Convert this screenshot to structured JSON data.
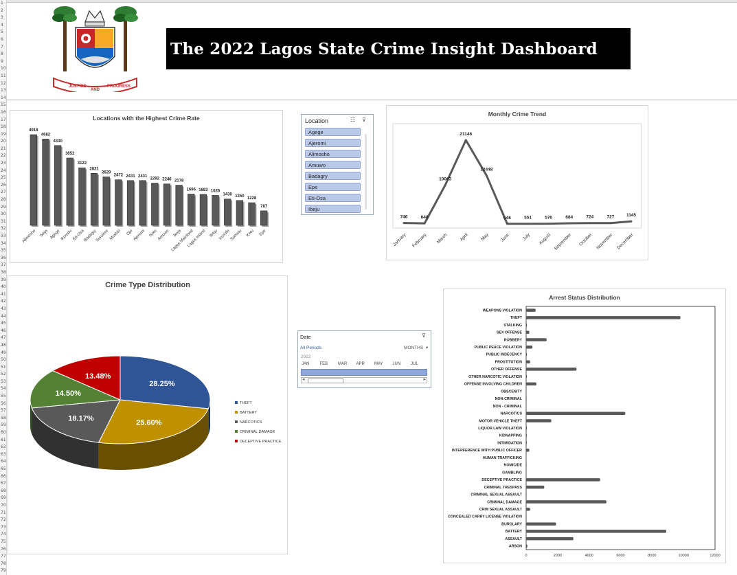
{
  "title": "The 2022 Lagos State Crime Insight Dashboard",
  "logo": {
    "motto_left": "JUSTICE",
    "motto_mid": "AND",
    "motto_right": "PROGRESS"
  },
  "row_numbers": [
    "1",
    "2",
    "3",
    "4",
    "5",
    "6",
    "7",
    "8",
    "9",
    "10",
    "11",
    "12",
    "13",
    "14",
    "15",
    "16",
    "17",
    "18",
    "19",
    "20",
    "21",
    "22",
    "23",
    "24",
    "25",
    "26",
    "27",
    "28",
    "29",
    "30",
    "31",
    "32",
    "33",
    "34",
    "35",
    "36",
    "37",
    "38",
    "39",
    "40",
    "41",
    "42",
    "43",
    "44",
    "45",
    "46",
    "47",
    "48",
    "49",
    "50",
    "51",
    "52",
    "53",
    "54",
    "55",
    "56",
    "57",
    "58",
    "59",
    "60",
    "61",
    "62",
    "63",
    "64",
    "65",
    "66",
    "67",
    "68",
    "69",
    "70",
    "71",
    "72",
    "73",
    "74",
    "75",
    "76",
    "77",
    "78",
    "79"
  ],
  "location_slicer": {
    "title": "Location",
    "items": [
      "Agege",
      "Ajeromi",
      "Alimosho",
      "Amuwo",
      "Badagry",
      "Epe",
      "Eti-Osa",
      "Ibeju"
    ]
  },
  "timeline_slicer": {
    "title": "Date",
    "all_periods": "All Periods",
    "unit": "MONTHS",
    "year": "2022",
    "months": [
      "JAN",
      "FEB",
      "MAR",
      "APR",
      "MAY",
      "JUN",
      "JUL"
    ]
  },
  "chart_data": [
    {
      "type": "bar",
      "title": "Locations with the Highest Crime Rate",
      "categories": [
        "Alimosho",
        "Ikeja",
        "Agege",
        "Ikorodu",
        "Eti-Osa",
        "Badagry",
        "Surulere",
        "Mushin",
        "Ojo",
        "Ajeromi",
        "Isolo",
        "Amuwo",
        "Ikeja",
        "Lagos Mainland",
        "Lagos Island",
        "Ibeju",
        "Kosofe",
        "Somolu",
        "Ketu",
        "Epe"
      ],
      "values": [
        4918,
        4682,
        4330,
        3652,
        3122,
        2821,
        2629,
        2472,
        2431,
        2431,
        2292,
        2246,
        2178,
        1696,
        1683,
        1626,
        1430,
        1350,
        1228,
        787
      ],
      "color": "#595959"
    },
    {
      "type": "line",
      "title": "Monthly Crime Trend",
      "categories": [
        "January",
        "February",
        "March",
        "April",
        "May",
        "June",
        "July",
        "August",
        "September",
        "October",
        "November",
        "December"
      ],
      "values": [
        746,
        648,
        10063,
        21146,
        12448,
        546,
        551,
        576,
        684,
        724,
        727,
        1145
      ],
      "color": "#595959"
    },
    {
      "type": "pie",
      "title": "Crime Type Distribution",
      "labels": [
        "THEFT",
        "BATTERY",
        "NARCOTICS",
        "CRIMINAL DAMAGE",
        "DECEPTIVE PRACTICE"
      ],
      "values": [
        28.25,
        25.6,
        18.17,
        14.5,
        13.48
      ],
      "value_labels": [
        "28.25%",
        "25.60%",
        "18.17%",
        "14.50%",
        "13.48%"
      ],
      "colors": [
        "#2f5597",
        "#bf9000",
        "#595959",
        "#548235",
        "#c00000"
      ],
      "legend": "right"
    },
    {
      "type": "bar",
      "orientation": "horizontal",
      "title": "Arrest Status Distribution",
      "categories": [
        "WEAPONS VIOLATION",
        "THEFT",
        "STALKING",
        "SEX OFFENSE",
        "ROBBERY",
        "PUBLIC PEACE VIOLATION",
        "PUBLIC INDECENCY",
        "PROSTITUTION",
        "OTHER OFFENSE",
        "OTHER NARCOTIC VIOLATION",
        "OFFENSE INVOLVING CHILDREN",
        "OBSCENITY",
        "NON-CRIMINAL",
        "NON - CRIMINAL",
        "NARCOTICS",
        "MOTOR VEHICLE THEFT",
        "LIQUOR LAW VIOLATION",
        "KIDNAPPING",
        "INTIMIDATION",
        "INTERFERENCE WITH PUBLIC OFFICER",
        "HUMAN TRAFFICKING",
        "HOMICIDE",
        "GAMBLING",
        "DECEPTIVE PRACTICE",
        "CRIMINAL TRESPASS",
        "CRIMINAL SEXUAL ASSAULT",
        "CRIMINAL DAMAGE",
        "CRIM SEXUAL ASSAULT",
        "CONCEALED CARRY LICENSE VIOLATION",
        "BURGLARY",
        "BATTERY",
        "ASSAULT",
        "ARSON"
      ],
      "values": [
        600,
        9800,
        50,
        200,
        1300,
        400,
        50,
        250,
        3200,
        50,
        650,
        20,
        30,
        20,
        6300,
        1600,
        50,
        40,
        40,
        200,
        20,
        30,
        20,
        4700,
        1150,
        30,
        5100,
        250,
        30,
        1900,
        8900,
        3000,
        80
      ],
      "xlim": [
        0,
        12000
      ],
      "xticks": [
        "0",
        "2000",
        "4000",
        "6000",
        "8000",
        "10000",
        "12000"
      ],
      "color": "#595959"
    }
  ]
}
